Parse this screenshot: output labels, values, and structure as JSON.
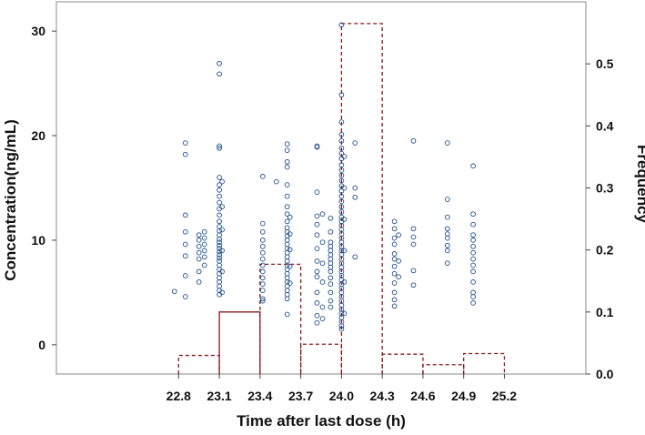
{
  "chart_data": {
    "type": "scatter",
    "xlabel": "Time after last dose (h)",
    "ylabel": "Concentration(ng/mL)",
    "y2label": "Frequency",
    "x_ticks": [
      "22.8",
      "23.1",
      "23.4",
      "23.7",
      "24.0",
      "24.3",
      "24.6",
      "24.9",
      "25.2"
    ],
    "y_ticks": [
      "0",
      "10",
      "20",
      "30"
    ],
    "y2_ticks": [
      "0.0",
      "0.1",
      "0.2",
      "0.3",
      "0.4",
      "0.5"
    ],
    "xlim": [
      21.9,
      25.8
    ],
    "ylim": [
      -2.8,
      32.8
    ],
    "y2lim": [
      0.0,
      0.6
    ],
    "colors": {
      "points": "#1f4e8c",
      "histogram": "#8b1a1a"
    },
    "grid": false,
    "histogram": [
      {
        "x0": 22.8,
        "x1": 23.1,
        "freq": 0.03,
        "style": "dashed"
      },
      {
        "x0": 23.1,
        "x1": 23.4,
        "freq": 0.1,
        "style": "solid"
      },
      {
        "x0": 23.4,
        "x1": 23.7,
        "freq": 0.177,
        "style": "dashed"
      },
      {
        "x0": 23.7,
        "x1": 24.0,
        "freq": 0.048,
        "style": "dashed"
      },
      {
        "x0": 24.0,
        "x1": 24.3,
        "freq": 0.565,
        "style": "dashed"
      },
      {
        "x0": 24.3,
        "x1": 24.6,
        "freq": 0.032,
        "style": "dashed"
      },
      {
        "x0": 24.6,
        "x1": 24.9,
        "freq": 0.015,
        "style": "dashed"
      },
      {
        "x0": 24.9,
        "x1": 25.2,
        "freq": 0.033,
        "style": "dashed"
      }
    ],
    "series": [
      {
        "x": 22.77,
        "y": [
          5.1
        ]
      },
      {
        "x": 22.85,
        "y": [
          19.3,
          18.2,
          12.4,
          10.8,
          9.6,
          8.5,
          6.6,
          4.6
        ]
      },
      {
        "x": 22.95,
        "y": [
          10.5,
          10.0,
          9.4,
          8.8,
          8.2,
          7.0,
          6.0
        ]
      },
      {
        "x": 22.99,
        "y": [
          10.8,
          10.2,
          9.6,
          9.0,
          8.4,
          7.6
        ]
      },
      {
        "x": 23.1,
        "y": [
          26.9,
          25.9,
          19.0,
          18.8,
          16.0,
          15.3,
          14.8,
          14.2,
          13.6,
          13.0,
          12.4,
          11.8,
          11.3,
          10.9,
          10.5,
          10.1,
          9.8,
          9.5,
          9.2,
          8.9,
          8.6,
          8.3,
          8.0,
          7.6,
          7.2,
          6.8,
          6.4,
          6.0,
          5.6,
          5.2,
          4.8
        ]
      },
      {
        "x": 23.12,
        "y": [
          15.6,
          13.2,
          11.0,
          9.0,
          7.0,
          5.0
        ]
      },
      {
        "x": 23.42,
        "y": [
          16.1,
          11.6,
          10.8,
          10.0,
          9.4,
          8.8,
          8.2,
          7.6,
          7.0,
          6.4,
          5.8,
          5.2,
          4.4,
          4.2
        ]
      },
      {
        "x": 23.52,
        "y": [
          15.6
        ]
      },
      {
        "x": 23.6,
        "y": [
          19.2,
          18.6,
          17.5,
          17.0,
          15.3,
          14.2,
          13.2,
          12.5,
          11.8,
          11.2,
          10.8,
          10.4,
          10.0,
          9.6,
          9.2,
          8.8,
          8.4,
          8.0,
          7.6,
          7.2,
          6.8,
          6.4,
          6.0,
          5.6,
          5.2,
          4.8,
          4.4,
          2.9
        ]
      },
      {
        "x": 23.62,
        "y": [
          12.2,
          10.6,
          9.1,
          7.5,
          5.9
        ]
      },
      {
        "x": 23.82,
        "y": [
          19.0,
          18.9,
          14.6,
          12.3,
          11.5,
          10.5,
          9.2,
          8.0,
          7.0,
          6.5,
          5.0,
          4.0,
          2.8,
          2.1
        ]
      },
      {
        "x": 23.86,
        "y": [
          12.5,
          9.8,
          7.8,
          6.0,
          3.6,
          2.5
        ]
      },
      {
        "x": 23.92,
        "y": [
          12.1,
          10.8,
          9.8,
          9.4,
          9.0,
          8.6,
          8.2,
          7.8,
          7.4,
          7.0,
          6.4,
          5.8,
          5.0,
          4.2,
          3.6
        ]
      },
      {
        "x": 24.0,
        "y": [
          30.6,
          23.9,
          21.3,
          20.1,
          19.5,
          18.8,
          18.3,
          17.8,
          17.2,
          16.7,
          16.2,
          15.7,
          15.2,
          14.7,
          14.2,
          13.7,
          13.2,
          12.7,
          12.2,
          11.8,
          11.4,
          11.0,
          10.6,
          10.2,
          9.8,
          9.4,
          9.0,
          8.6,
          8.2,
          7.8,
          7.4,
          7.0,
          6.6,
          6.2,
          5.8,
          5.4,
          5.0,
          4.6,
          4.2,
          3.8,
          3.4,
          3.0,
          2.6,
          2.2,
          1.8,
          1.5
        ]
      },
      {
        "x": 24.02,
        "y": [
          18.0,
          15.0,
          12.0,
          9.0,
          6.0,
          3.0
        ]
      },
      {
        "x": 24.1,
        "y": [
          19.3,
          15.0,
          14.1,
          8.4
        ]
      },
      {
        "x": 24.39,
        "y": [
          11.8,
          11.1,
          10.2,
          9.6,
          8.7,
          8.2,
          7.5,
          6.8,
          5.9,
          5.0,
          4.3,
          3.7
        ]
      },
      {
        "x": 24.42,
        "y": [
          10.5,
          8.0,
          6.5
        ]
      },
      {
        "x": 24.53,
        "y": [
          19.5,
          11.1,
          10.3,
          9.6,
          7.1,
          5.7
        ]
      },
      {
        "x": 24.78,
        "y": [
          19.3,
          13.9,
          12.2,
          11.1,
          10.6,
          10.2,
          9.5,
          9.0,
          7.8
        ]
      },
      {
        "x": 24.97,
        "y": [
          17.1,
          12.5,
          11.5,
          10.5,
          10.0,
          9.4,
          8.8,
          8.2,
          7.6,
          7.0,
          6.0,
          5.0,
          4.6,
          4.0
        ]
      }
    ]
  }
}
